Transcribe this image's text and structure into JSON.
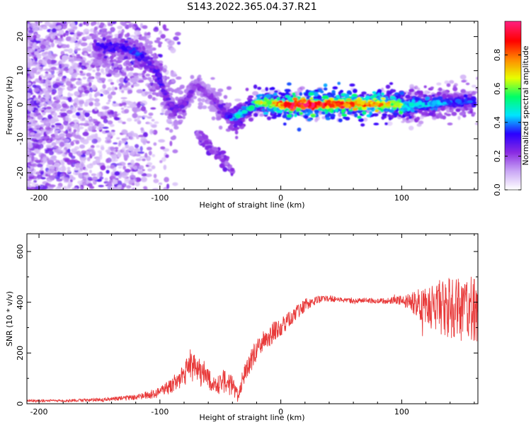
{
  "title": "S143.2022.365.04.37.R21",
  "colors": {
    "snr_line": "#e83a3a",
    "background": "#ffffff",
    "axis": "#000000"
  },
  "chart_data": [
    {
      "type": "heatmap",
      "name": "spectrogram",
      "xlabel": "Height of straight line (km)",
      "ylabel": "Frequency (Hz)",
      "xlim": [
        -210,
        163
      ],
      "ylim": [
        -25,
        24.5
      ],
      "x_ticks": [
        -200,
        -100,
        0,
        100
      ],
      "x_tick_labels": [
        "-200",
        "-100",
        "0",
        "100"
      ],
      "y_ticks": [
        -20,
        -10,
        0,
        10,
        20
      ],
      "y_tick_labels": [
        "-20",
        "-10",
        "0",
        "10",
        "20"
      ],
      "grid": false,
      "colorbar": {
        "label": "Normalized spectral amplitude",
        "range": [
          0,
          1
        ],
        "ticks": [
          0.0,
          0.2,
          0.4,
          0.6,
          0.8
        ],
        "tick_labels": [
          "0.0",
          "0.2",
          "0.4",
          "0.6",
          "0.8"
        ],
        "colormap": [
          "#ffffff",
          "#c9a6f5",
          "#8a2be2",
          "#2a00ff",
          "#00e5ff",
          "#00ff66",
          "#e8ff00",
          "#ff8a00",
          "#ff0000",
          "#ff1f7a"
        ]
      },
      "ridge": {
        "x": [
          -155,
          -145,
          -130,
          -118,
          -108,
          -100,
          -95,
          -90,
          -80,
          -70,
          -60,
          -50,
          -45,
          -40,
          -35,
          -30,
          -25,
          -20,
          -10,
          0,
          20,
          40,
          60,
          80,
          100,
          103,
          110,
          130,
          150,
          160
        ],
        "y": [
          17,
          17,
          16.5,
          15,
          12,
          8,
          2,
          -1,
          0,
          6,
          3,
          -1,
          -3,
          -4,
          -3,
          -2,
          -1,
          0.5,
          0.5,
          0,
          0,
          0,
          0.2,
          0.3,
          -0.2,
          -1,
          0,
          0.5,
          0.8,
          1
        ],
        "amplitude": [
          0.25,
          0.3,
          0.3,
          0.35,
          0.25,
          0.3,
          0.25,
          0.25,
          0.25,
          0.2,
          0.2,
          0.25,
          0.3,
          0.4,
          0.45,
          0.45,
          0.5,
          0.6,
          0.65,
          0.8,
          0.95,
          0.9,
          0.8,
          0.75,
          0.6,
          0.45,
          0.45,
          0.4,
          0.35,
          0.35
        ]
      },
      "secondary_branch": {
        "x": [
          -70,
          -60,
          -50,
          -45,
          -40
        ],
        "y": [
          -8,
          -12,
          -15,
          -17,
          -20
        ],
        "amplitude": 0.2
      }
    },
    {
      "type": "line",
      "name": "snr",
      "xlabel": "Height of straight line (km)",
      "ylabel": "SNR (10 * v/v)",
      "xlim": [
        -210,
        163
      ],
      "ylim": [
        0,
        670
      ],
      "x_ticks": [
        -200,
        -100,
        0,
        100
      ],
      "x_tick_labels": [
        "-200",
        "-100",
        "0",
        "100"
      ],
      "y_ticks": [
        0,
        200,
        400,
        600
      ],
      "y_tick_labels": [
        "0",
        "200",
        "400",
        "600"
      ],
      "grid": false,
      "x": [
        -210,
        -180,
        -150,
        -120,
        -110,
        -100,
        -95,
        -90,
        -80,
        -75,
        -70,
        -65,
        -60,
        -55,
        -50,
        -45,
        -40,
        -35,
        -30,
        -25,
        -20,
        -15,
        -10,
        -5,
        0,
        10,
        20,
        30,
        40,
        50,
        60,
        70,
        80,
        90,
        100,
        110,
        120,
        130,
        140,
        150,
        163
      ],
      "y": [
        12,
        12,
        15,
        25,
        35,
        45,
        60,
        75,
        110,
        150,
        130,
        120,
        95,
        70,
        85,
        90,
        70,
        30,
        120,
        170,
        210,
        230,
        260,
        290,
        300,
        345,
        390,
        410,
        415,
        410,
        405,
        408,
        405,
        405,
        410,
        400,
        390,
        380,
        375,
        370,
        370
      ],
      "noise_amplitude": [
        5,
        5,
        8,
        10,
        15,
        20,
        25,
        30,
        45,
        70,
        60,
        55,
        45,
        35,
        45,
        50,
        40,
        15,
        35,
        45,
        45,
        40,
        40,
        40,
        35,
        30,
        25,
        15,
        12,
        10,
        10,
        10,
        10,
        12,
        20,
        45,
        80,
        110,
        120,
        130,
        130
      ]
    }
  ]
}
